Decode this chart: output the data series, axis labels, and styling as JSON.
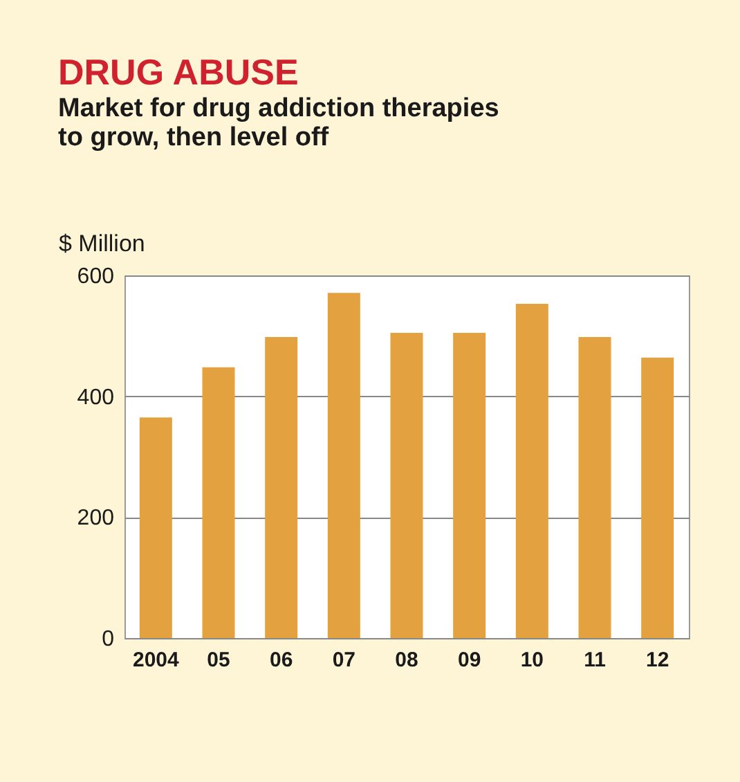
{
  "chart_data": {
    "type": "bar",
    "title": "DRUG ABUSE",
    "subtitle": "Market for drug addiction therapies to grow, then level off",
    "ylabel": "$ Million",
    "categories": [
      "2004",
      "05",
      "06",
      "07",
      "08",
      "09",
      "10",
      "11",
      "12"
    ],
    "values": [
      365,
      448,
      498,
      571,
      505,
      505,
      553,
      498,
      464
    ],
    "color": "#e3a23f",
    "ylim": [
      0,
      600
    ],
    "yticks": [
      0,
      200,
      400,
      600
    ],
    "grid": "y"
  }
}
